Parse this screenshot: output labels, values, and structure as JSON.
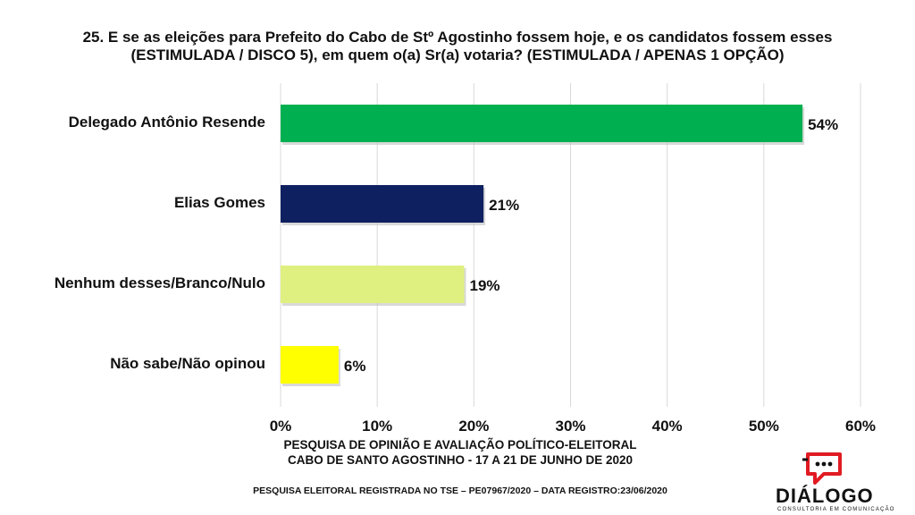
{
  "title_line1": "25. E se as eleições para Prefeito do Cabo de Stº Agostinho fossem hoje, e os candidatos fossem esses",
  "title_line2": "(ESTIMULADA / DISCO 5), em quem o(a) Sr(a) votaria? (ESTIMULADA / APENAS 1 OPÇÃO)",
  "footer": {
    "line1": "PESQUISA DE OPINIÃO E AVALIAÇÃO POLÍTICO-ELEITORAL",
    "line2": "CABO DE SANTO AGOSTINHO - 17 A 21 DE JUNHO DE 2020",
    "registration": "PESQUISA ELEITORAL REGISTRADA NO TSE – PE07967/2020 – DATA REGISTRO:23/06/2020"
  },
  "logo": {
    "name": "DIÁLOGO",
    "subtitle": "CONSULTORIA EM COMUNICAÇÃO",
    "icon": "speech-bubble-icon",
    "accent": "#e11b22"
  },
  "chart_data": {
    "type": "bar",
    "orientation": "horizontal",
    "categories": [
      "Delegado Antônio Resende",
      "Elias Gomes",
      "Nenhum desses/Branco/Nulo",
      "Não sabe/Não opinou"
    ],
    "values": [
      54,
      21,
      19,
      6
    ],
    "value_labels": [
      "54%",
      "21%",
      "19%",
      "6%"
    ],
    "colors": [
      "#00b050",
      "#0e2060",
      "#e0f080",
      "#ffff00"
    ],
    "xlim": [
      0,
      60
    ],
    "ticks": [
      0,
      10,
      20,
      30,
      40,
      50,
      60
    ],
    "tick_labels": [
      "0%",
      "10%",
      "20%",
      "30%",
      "40%",
      "50%",
      "60%"
    ],
    "grid": true,
    "legend": "none"
  }
}
